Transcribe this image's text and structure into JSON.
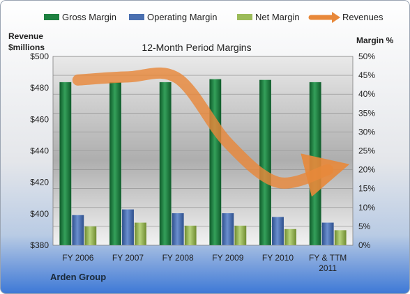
{
  "chart_data": {
    "type": "bar",
    "title": "12-Month Period Margins",
    "company": "Arden Group",
    "categories": [
      "FY 2006",
      "FY 2007",
      "FY 2008",
      "FY 2009",
      "FY 2010",
      "FY & TTM 2011"
    ],
    "y_left": {
      "label_line1": "Revenue",
      "label_line2": "$millions",
      "range": [
        380,
        500
      ],
      "ticks": [
        "$380",
        "$400",
        "$420",
        "$440",
        "$460",
        "$480",
        "$500"
      ]
    },
    "y_right": {
      "label": "Margin %",
      "range": [
        0,
        50
      ],
      "ticks": [
        "0%",
        "5%",
        "10%",
        "15%",
        "20%",
        "25%",
        "30%",
        "35%",
        "40%",
        "45%",
        "50%"
      ]
    },
    "series": [
      {
        "name": "Gross Margin",
        "type": "bar",
        "axis": "right",
        "color": "#1e8040",
        "values": [
          43.2,
          43.2,
          43.2,
          44.0,
          43.8,
          43.2
        ]
      },
      {
        "name": "Operating Margin",
        "type": "bar",
        "axis": "right",
        "color": "#4a6fb0",
        "values": [
          8.0,
          9.5,
          8.5,
          8.5,
          7.5,
          6.0
        ]
      },
      {
        "name": "Net Margin",
        "type": "bar",
        "axis": "right",
        "color": "#9bbb59",
        "values": [
          5.0,
          6.0,
          5.2,
          5.2,
          4.3,
          4.0
        ]
      },
      {
        "name": "Revenues",
        "type": "line",
        "axis": "left",
        "color": "#e8883a",
        "values": [
          485,
          487,
          486,
          445,
          420,
          428
        ]
      }
    ],
    "grid": true,
    "legend_position": "top"
  }
}
